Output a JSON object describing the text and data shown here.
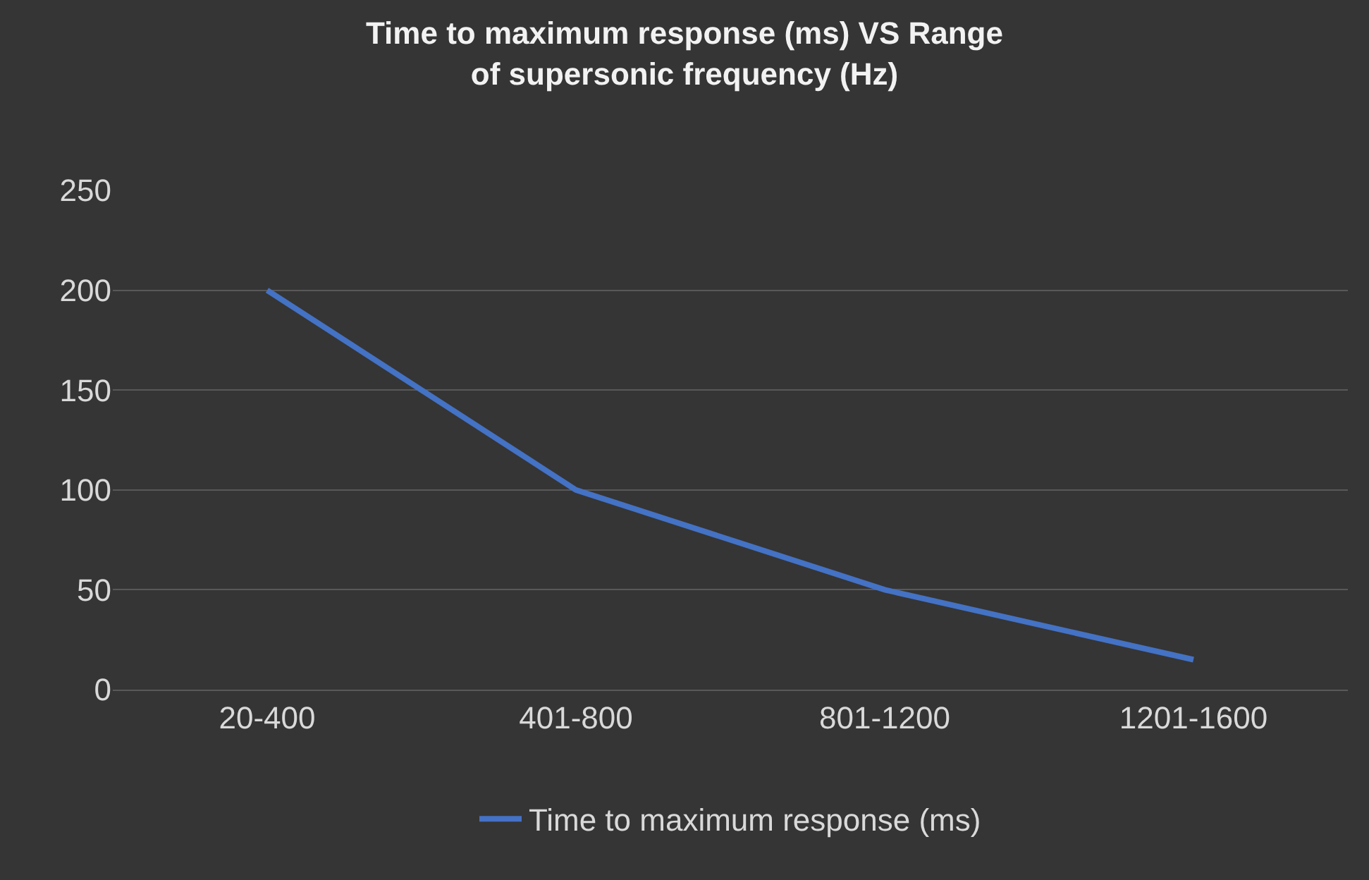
{
  "chart_data": {
    "type": "line",
    "title": "Time to maximum response (ms) VS Range of supersonic frequency (Hz)",
    "categories": [
      "20-400",
      "401-800",
      "801-1200",
      "1201-1600"
    ],
    "series": [
      {
        "name": "Time to maximum response (ms)",
        "color": "#4472c4",
        "values": [
          200,
          100,
          50,
          15
        ]
      }
    ],
    "ylim": [
      0,
      250
    ],
    "yticks": [
      0,
      50,
      100,
      150,
      200,
      250
    ],
    "grid": "y",
    "legend": "bottom",
    "marker": "none",
    "line_style": "solid"
  }
}
